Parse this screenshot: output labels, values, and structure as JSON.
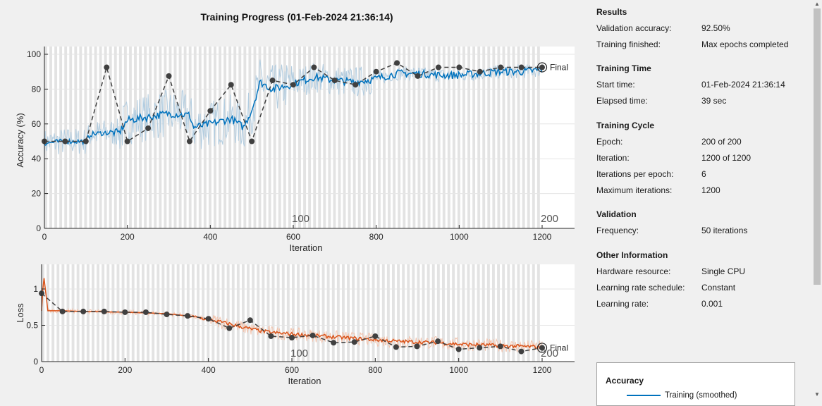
{
  "title": "Training Progress (01-Feb-2024 21:36:14)",
  "colors": {
    "training_accuracy": "#0072bd",
    "training_accuracy_raw": "#b3cde0",
    "training_loss": "#d95319",
    "training_loss_raw": "#f2c4ae",
    "validation": "#404040",
    "epoch_band": "#d9d9d9"
  },
  "chart_data": [
    {
      "type": "line",
      "ylabel": "Accuracy (%)",
      "xlabel": "Iteration",
      "xlim": [
        0,
        1200
      ],
      "ylim": [
        0,
        100
      ],
      "xticks": [
        "0",
        "200",
        "400",
        "600",
        "800",
        "1000",
        "1200"
      ],
      "yticks": [
        "0",
        "20",
        "40",
        "60",
        "80",
        "100"
      ],
      "epoch_labels": [
        {
          "epoch": "100",
          "iteration": 600
        },
        {
          "epoch": "200",
          "iteration": 1200
        }
      ],
      "final_label": "Final",
      "validation": {
        "x": [
          0,
          50,
          100,
          150,
          200,
          250,
          300,
          350,
          400,
          450,
          500,
          550,
          600,
          650,
          700,
          750,
          800,
          850,
          900,
          950,
          1000,
          1050,
          1100,
          1150,
          1200
        ],
        "y": [
          50,
          50,
          50,
          92.5,
          50,
          57.5,
          87.5,
          50,
          67.5,
          82.5,
          50,
          85,
          82.5,
          92.5,
          85,
          82.5,
          90,
          95,
          87.5,
          92.5,
          92.5,
          90,
          92.5,
          92.5,
          92.5
        ]
      },
      "training_smoothed_anchors": {
        "x": [
          0,
          50,
          100,
          110,
          150,
          180,
          200,
          250,
          300,
          350,
          360,
          400,
          450,
          480,
          500,
          520,
          550,
          600,
          650,
          700,
          750,
          800,
          850,
          900,
          950,
          1000,
          1050,
          1100,
          1150,
          1200
        ],
        "y": [
          49,
          50,
          50,
          54,
          55,
          55,
          62,
          64,
          66,
          65,
          58,
          60,
          63,
          58,
          68,
          84,
          80,
          83,
          87,
          85,
          84,
          86,
          89,
          89,
          88,
          88,
          89,
          90,
          90,
          91
        ]
      }
    },
    {
      "type": "line",
      "ylabel": "Loss",
      "xlabel": "Iteration",
      "xlim": [
        0,
        1200
      ],
      "ylim": [
        0,
        1.3
      ],
      "xticks": [
        "0",
        "200",
        "400",
        "600",
        "800",
        "1000",
        "1200"
      ],
      "yticks": [
        "0",
        "0.5",
        "1"
      ],
      "epoch_labels": [
        {
          "epoch": "100",
          "iteration": 600
        },
        {
          "epoch": "200",
          "iteration": 1200
        }
      ],
      "final_label": "Final",
      "validation": {
        "x": [
          0,
          50,
          100,
          150,
          200,
          250,
          300,
          350,
          400,
          450,
          500,
          550,
          600,
          650,
          700,
          750,
          800,
          850,
          900,
          950,
          1000,
          1050,
          1100,
          1150,
          1200
        ],
        "y": [
          0.94,
          0.69,
          0.69,
          0.69,
          0.68,
          0.68,
          0.65,
          0.63,
          0.59,
          0.46,
          0.57,
          0.35,
          0.33,
          0.36,
          0.26,
          0.27,
          0.35,
          0.2,
          0.21,
          0.28,
          0.17,
          0.19,
          0.21,
          0.14,
          0.19
        ]
      },
      "training_smoothed_anchors": {
        "x": [
          0,
          5,
          15,
          50,
          100,
          200,
          300,
          350,
          400,
          450,
          500,
          550,
          600,
          650,
          700,
          750,
          800,
          850,
          900,
          950,
          1000,
          1050,
          1100,
          1150,
          1200
        ],
        "y": [
          0.7,
          1.2,
          0.7,
          0.7,
          0.69,
          0.68,
          0.66,
          0.63,
          0.58,
          0.52,
          0.45,
          0.4,
          0.38,
          0.36,
          0.34,
          0.32,
          0.3,
          0.28,
          0.27,
          0.26,
          0.24,
          0.23,
          0.22,
          0.21,
          0.2
        ]
      }
    }
  ],
  "results": {
    "heading": "Results",
    "rows": [
      {
        "k": "Validation accuracy:",
        "v": "92.50%"
      },
      {
        "k": "Training finished:",
        "v": "Max epochs completed"
      }
    ]
  },
  "training_time": {
    "heading": "Training Time",
    "rows": [
      {
        "k": "Start time:",
        "v": "01-Feb-2024 21:36:14"
      },
      {
        "k": "Elapsed time:",
        "v": "39 sec"
      }
    ]
  },
  "training_cycle": {
    "heading": "Training Cycle",
    "rows": [
      {
        "k": "Epoch:",
        "v": "200 of 200"
      },
      {
        "k": "Iteration:",
        "v": "1200 of 1200"
      },
      {
        "k": "Iterations per epoch:",
        "v": "6"
      },
      {
        "k": "Maximum iterations:",
        "v": "1200"
      }
    ]
  },
  "validation_info": {
    "heading": "Validation",
    "rows": [
      {
        "k": "Frequency:",
        "v": "50 iterations"
      }
    ]
  },
  "other": {
    "heading": "Other Information",
    "rows": [
      {
        "k": "Hardware resource:",
        "v": "Single CPU"
      },
      {
        "k": "Learning rate schedule:",
        "v": "Constant"
      },
      {
        "k": "Learning rate:",
        "v": "0.001"
      }
    ]
  },
  "legend": {
    "title": "Accuracy",
    "item": "Training (smoothed)"
  },
  "scrollbar": {
    "up_arrow": "▲",
    "down_arrow": "▼"
  }
}
